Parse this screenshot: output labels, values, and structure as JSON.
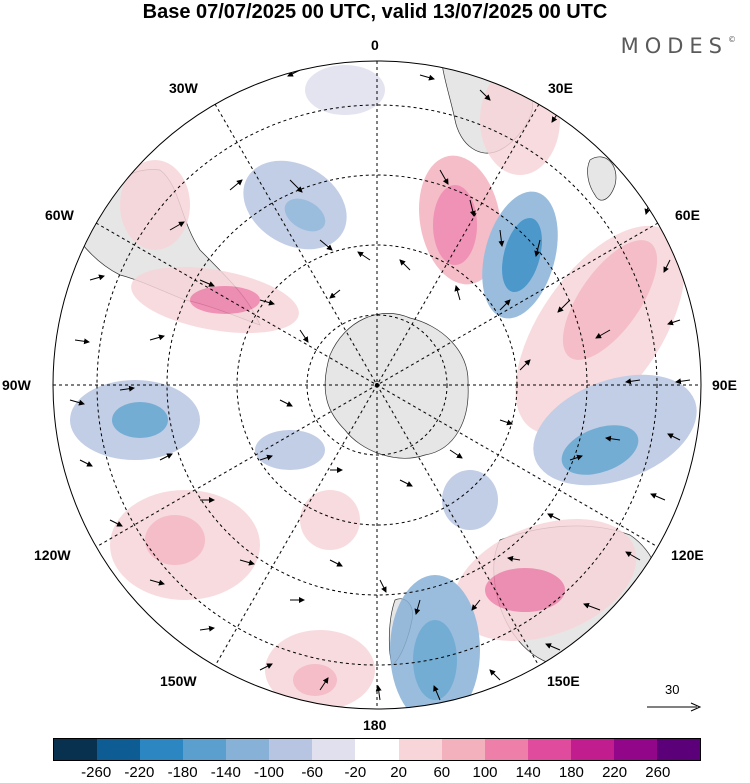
{
  "title": "Base 07/07/2025 00 UTC, valid 13/07/2025 00 UTC",
  "brand": "MODES",
  "brand_mark": "©",
  "longitude_labels": {
    "n": "0",
    "ne30": "30E",
    "ne60": "60E",
    "e": "90E",
    "se120": "120E",
    "se150": "150E",
    "s": "180",
    "sw150": "150W",
    "sw120": "120W",
    "w": "90W",
    "nw60": "60W",
    "nw30": "30W"
  },
  "reference_vector_label": "30",
  "colorbar": {
    "ticks": [
      "-260",
      "-220",
      "-180",
      "-140",
      "-100",
      "-60",
      "-20",
      "20",
      "60",
      "100",
      "140",
      "180",
      "220",
      "260"
    ],
    "colors": [
      "#08304f",
      "#0d5d94",
      "#2c86c2",
      "#5a9fcd",
      "#88b1d8",
      "#b8c5e2",
      "#e0e0ef",
      "#ffffff",
      "#f7d5d9",
      "#f3b1bd",
      "#ee7fa8",
      "#e04b9e",
      "#c11d8f",
      "#92068a",
      "#5c007a"
    ]
  }
}
